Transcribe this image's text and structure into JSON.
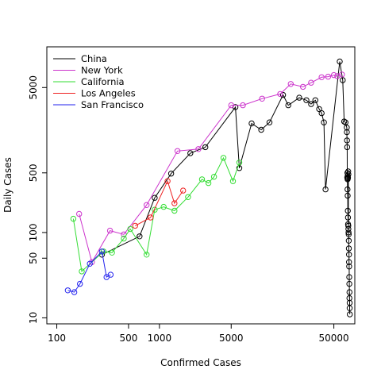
{
  "chart_data": {
    "type": "scatter",
    "title": "",
    "xlabel": "Confirmed Cases",
    "ylabel": "Daily Cases",
    "x_scale": "log",
    "y_scale": "log",
    "xlim": [
      80,
      80000
    ],
    "ylim": [
      8.5,
      15000
    ],
    "x_ticks": [
      100,
      500,
      1000,
      5000,
      50000
    ],
    "y_ticks": [
      10,
      50,
      100,
      500,
      5000
    ],
    "grid": false,
    "legend_position": "top-left",
    "series": [
      {
        "name": "China",
        "color": "#000000",
        "points": [
          [
            275,
            55
          ],
          [
            640,
            90
          ],
          [
            900,
            255
          ],
          [
            1300,
            490
          ],
          [
            2000,
            850
          ],
          [
            2800,
            1000
          ],
          [
            5500,
            2950
          ],
          [
            6000,
            570
          ],
          [
            7900,
            1900
          ],
          [
            9800,
            1600
          ],
          [
            11800,
            1950
          ],
          [
            16000,
            4100
          ],
          [
            18000,
            3100
          ],
          [
            23000,
            3800
          ],
          [
            27000,
            3550
          ],
          [
            30000,
            3200
          ],
          [
            33000,
            3550
          ],
          [
            36000,
            2800
          ],
          [
            38000,
            2500
          ],
          [
            40000,
            1950
          ],
          [
            41500,
            320
          ],
          [
            57000,
            10100
          ],
          [
            61000,
            6100
          ],
          [
            63000,
            2000
          ],
          [
            65000,
            1950
          ],
          [
            66800,
            1700
          ],
          [
            67000,
            1500
          ],
          [
            67200,
            1200
          ],
          [
            67400,
            1000
          ],
          [
            67500,
            440
          ],
          [
            67800,
            500
          ],
          [
            68000,
            420
          ],
          [
            68200,
            460
          ],
          [
            68500,
            430
          ],
          [
            68700,
            440
          ],
          [
            69000,
            520
          ],
          [
            69200,
            480
          ],
          [
            67900,
            320
          ],
          [
            68100,
            270
          ],
          [
            68400,
            180
          ],
          [
            68600,
            150
          ],
          [
            68800,
            125
          ],
          [
            69100,
            120
          ],
          [
            69300,
            110
          ],
          [
            69500,
            100
          ],
          [
            69700,
            95
          ],
          [
            69900,
            80
          ],
          [
            70000,
            65
          ],
          [
            70200,
            55
          ],
          [
            70300,
            45
          ],
          [
            70500,
            40
          ],
          [
            70600,
            30
          ],
          [
            70800,
            25
          ],
          [
            71000,
            20
          ],
          [
            71200,
            15
          ],
          [
            70900,
            17
          ],
          [
            71300,
            13
          ],
          [
            71500,
            11
          ]
        ]
      },
      {
        "name": "New York",
        "color": "#cc33cc",
        "points": [
          [
            165,
            165
          ],
          [
            220,
            45
          ],
          [
            330,
            105
          ],
          [
            450,
            95
          ],
          [
            750,
            210
          ],
          [
            1500,
            900
          ],
          [
            2400,
            950
          ],
          [
            5000,
            3100
          ],
          [
            6500,
            3100
          ],
          [
            10000,
            3700
          ],
          [
            15000,
            4200
          ],
          [
            19000,
            5500
          ],
          [
            25000,
            5100
          ],
          [
            30000,
            5700
          ],
          [
            38000,
            6600
          ],
          [
            44000,
            6700
          ],
          [
            50000,
            7000
          ],
          [
            54000,
            6800
          ],
          [
            60000,
            7100
          ]
        ]
      },
      {
        "name": "California",
        "color": "#33dd33",
        "points": [
          [
            145,
            145
          ],
          [
            175,
            35
          ],
          [
            285,
            60
          ],
          [
            345,
            58
          ],
          [
            450,
            85
          ],
          [
            520,
            110
          ],
          [
            750,
            55
          ],
          [
            900,
            185
          ],
          [
            1100,
            200
          ],
          [
            1400,
            180
          ],
          [
            1900,
            260
          ],
          [
            2600,
            420
          ],
          [
            3000,
            380
          ],
          [
            3400,
            450
          ],
          [
            4200,
            750
          ],
          [
            5200,
            400
          ],
          [
            6000,
            660
          ]
        ]
      },
      {
        "name": "Los Angeles",
        "color": "#ee2222",
        "points": [
          [
            580,
            120
          ],
          [
            820,
            150
          ],
          [
            1200,
            400
          ],
          [
            1400,
            220
          ],
          [
            1700,
            310
          ]
        ]
      },
      {
        "name": "San Francisco",
        "color": "#2222ee",
        "points": [
          [
            128,
            21
          ],
          [
            148,
            20
          ],
          [
            168,
            25
          ],
          [
            210,
            43
          ],
          [
            305,
            30
          ],
          [
            335,
            32
          ],
          [
            275,
            60
          ]
        ]
      }
    ]
  }
}
